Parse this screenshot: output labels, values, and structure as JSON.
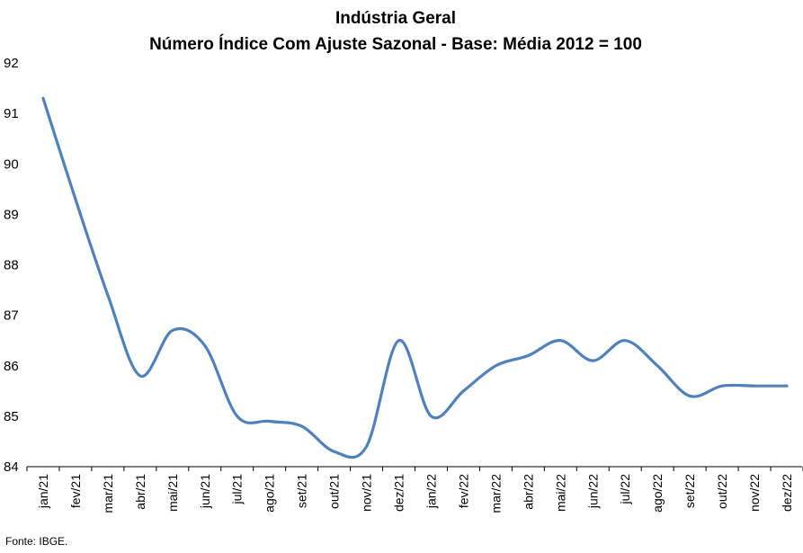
{
  "chart_data": {
    "type": "line",
    "title": "Indústria Geral",
    "subtitle": "Número Índice Com Ajuste Sazonal - Base: Média 2012 = 100",
    "xlabel": "",
    "ylabel": "",
    "ylim": [
      84,
      92
    ],
    "yticks": [
      "84",
      "85",
      "86",
      "87",
      "88",
      "89",
      "90",
      "91",
      "92"
    ],
    "categories": [
      "jan/21",
      "fev/21",
      "mar/21",
      "abr/21",
      "mai/21",
      "jun/21",
      "jul/21",
      "ago/21",
      "set/21",
      "out/21",
      "nov/21",
      "dez/21",
      "jan/22",
      "fev/22",
      "mar/22",
      "abr/22",
      "mai/22",
      "jun/22",
      "jul/22",
      "ago/22",
      "set/22",
      "out/22",
      "nov/22",
      "dez/22"
    ],
    "series": [
      {
        "values": [
          91.3,
          89.3,
          87.4,
          85.8,
          86.7,
          86.4,
          85.0,
          84.9,
          84.8,
          84.3,
          84.4,
          86.5,
          85.0,
          85.5,
          86.0,
          86.2,
          86.5,
          86.1,
          86.5,
          86.0,
          85.4,
          85.6,
          85.6,
          85.6
        ],
        "color": "#4f81bd"
      }
    ],
    "grid": false,
    "legend": "none"
  },
  "source": "Fonte: IBGE."
}
